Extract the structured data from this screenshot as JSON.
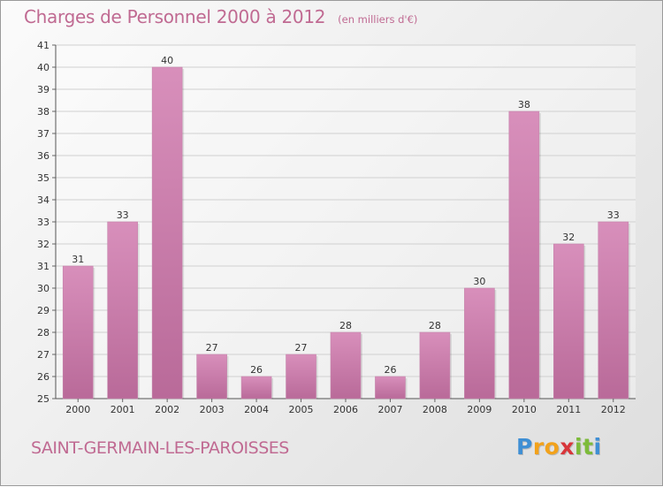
{
  "header": {
    "title": "Charges de Personnel 2000 à 2012",
    "subtitle": "(en milliers d'€)"
  },
  "footer": {
    "commune": "SAINT-GERMAIN-LES-PAROISSES",
    "logo_letters": [
      "P",
      "r",
      "o",
      "x",
      "i",
      "t",
      "i"
    ],
    "logo_colors": [
      "#3f8fd4",
      "#f2a21b",
      "#f2a21b",
      "#d8363b",
      "#7dbb3a",
      "#7dbb3a",
      "#3f8fd4"
    ]
  },
  "colors": {
    "bar": "#d88fbb",
    "bar_dark": "#b96a99",
    "title": "#c06a92",
    "grid": "#d0d0d0"
  },
  "chart_data": {
    "type": "bar",
    "categories": [
      "2000",
      "2001",
      "2002",
      "2003",
      "2004",
      "2005",
      "2006",
      "2007",
      "2008",
      "2009",
      "2010",
      "2011",
      "2012"
    ],
    "values": [
      31,
      33,
      40,
      27,
      26,
      27,
      28,
      26,
      28,
      30,
      38,
      32,
      33
    ],
    "data_labels": [
      "31",
      "33",
      "40",
      "27",
      "26",
      "27",
      "28",
      "26",
      "28",
      "30",
      "38",
      "32",
      "33"
    ],
    "ylim": [
      25,
      41
    ],
    "yticks": [
      "25",
      "26",
      "27",
      "28",
      "29",
      "30",
      "31",
      "32",
      "33",
      "34",
      "35",
      "36",
      "37",
      "38",
      "39",
      "40",
      "41"
    ],
    "grid": true
  }
}
